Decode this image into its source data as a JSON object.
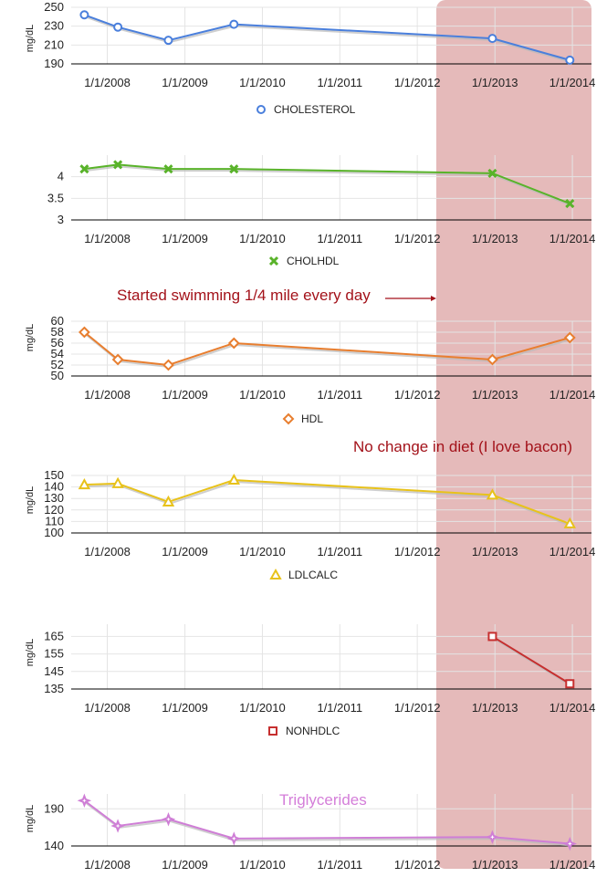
{
  "highlight_color": "#d38c8c",
  "grid_color": "#e4e4e4",
  "axis_color": "#000000",
  "chart_data": [
    {
      "type": "line",
      "title": "",
      "ylabel": "mg/dL",
      "x_ticks": [
        "1/1/2008",
        "1/1/2009",
        "1/1/2010",
        "1/1/2011",
        "1/1/2012",
        "1/1/2013",
        "1/1/2014"
      ],
      "yticks": [
        "190",
        "210",
        "230",
        "250"
      ],
      "ylim": [
        190,
        250
      ],
      "legend": "bottom",
      "series": [
        {
          "name": "CHOLESTEROL",
          "color": "#4a7fdc",
          "marker": "circle",
          "x": [
            "2007-09-15",
            "2008-02-20",
            "2008-10-15",
            "2009-08-20",
            "2012-12-20",
            "2013-12-20"
          ],
          "values": [
            242,
            229,
            215,
            232,
            217,
            194
          ]
        }
      ]
    },
    {
      "type": "line",
      "title": "",
      "ylabel": "",
      "x_ticks": [
        "1/1/2008",
        "1/1/2009",
        "1/1/2010",
        "1/1/2011",
        "1/1/2012",
        "1/1/2013",
        "1/1/2014"
      ],
      "yticks": [
        "3",
        "3.5",
        "4"
      ],
      "ylim": [
        3,
        4.5
      ],
      "legend": "bottom",
      "series": [
        {
          "name": "CHOLHDL",
          "color": "#59b32a",
          "marker": "x",
          "x": [
            "2007-09-15",
            "2008-02-20",
            "2008-10-15",
            "2009-08-20",
            "2012-12-20",
            "2013-12-20"
          ],
          "values": [
            4.18,
            4.28,
            4.18,
            4.18,
            4.08,
            3.38
          ]
        }
      ]
    },
    {
      "type": "line",
      "title": "",
      "ylabel": "mg/dL",
      "x_ticks": [
        "1/1/2008",
        "1/1/2009",
        "1/1/2010",
        "1/1/2011",
        "1/1/2012",
        "1/1/2013",
        "1/1/2014"
      ],
      "yticks": [
        "50",
        "52",
        "54",
        "56",
        "58",
        "60"
      ],
      "ylim": [
        50,
        60
      ],
      "legend": "bottom",
      "series": [
        {
          "name": "HDL",
          "color": "#e87e2f",
          "marker": "diamond",
          "x": [
            "2007-09-15",
            "2008-02-20",
            "2008-10-15",
            "2009-08-20",
            "2012-12-20",
            "2013-12-20"
          ],
          "values": [
            58,
            53,
            52,
            56,
            53,
            57
          ]
        }
      ]
    },
    {
      "type": "line",
      "title": "",
      "ylabel": "mg/dL",
      "x_ticks": [
        "1/1/2008",
        "1/1/2009",
        "1/1/2010",
        "1/1/2011",
        "1/1/2012",
        "1/1/2013",
        "1/1/2014"
      ],
      "yticks": [
        "100",
        "110",
        "120",
        "130",
        "140",
        "150"
      ],
      "ylim": [
        100,
        150
      ],
      "legend": "bottom",
      "series": [
        {
          "name": "LDLCALC",
          "color": "#e8c21a",
          "marker": "triangle",
          "x": [
            "2007-09-15",
            "2008-02-20",
            "2008-10-15",
            "2009-08-20",
            "2012-12-20",
            "2013-12-20"
          ],
          "values": [
            142,
            143,
            127,
            146,
            133,
            108
          ]
        }
      ]
    },
    {
      "type": "line",
      "title": "",
      "ylabel": "mg/dL",
      "x_ticks": [
        "1/1/2008",
        "1/1/2009",
        "1/1/2010",
        "1/1/2011",
        "1/1/2012",
        "1/1/2013",
        "1/1/2014"
      ],
      "yticks": [
        "135",
        "145",
        "155",
        "165"
      ],
      "ylim": [
        135,
        172
      ],
      "legend": "bottom",
      "series": [
        {
          "name": "NONHDLC",
          "color": "#c62f2f",
          "marker": "square",
          "x": [
            "2012-12-20",
            "2013-12-20"
          ],
          "values": [
            165,
            138
          ]
        }
      ]
    },
    {
      "type": "line",
      "title": "",
      "ylabel": "mg/dL",
      "x_ticks": [
        "1/1/2008",
        "1/1/2009",
        "1/1/2010",
        "1/1/2011",
        "1/1/2012",
        "1/1/2013",
        "1/1/2014"
      ],
      "yticks": [
        "140",
        "190"
      ],
      "ylim": [
        140,
        210
      ],
      "legend": "none",
      "series": [
        {
          "name": "",
          "color": "#cf7ed6",
          "marker": "star",
          "x": [
            "2007-09-15",
            "2008-02-20",
            "2008-10-15",
            "2009-08-20",
            "2012-12-20",
            "2013-12-20"
          ],
          "values": [
            201,
            167,
            176,
            150,
            152,
            143
          ]
        }
      ]
    }
  ],
  "annotations": {
    "swimming": "Started swimming 1/4 mile every day",
    "diet": "No change in diet (I love bacon)",
    "triglycerides": "Triglycerides"
  }
}
